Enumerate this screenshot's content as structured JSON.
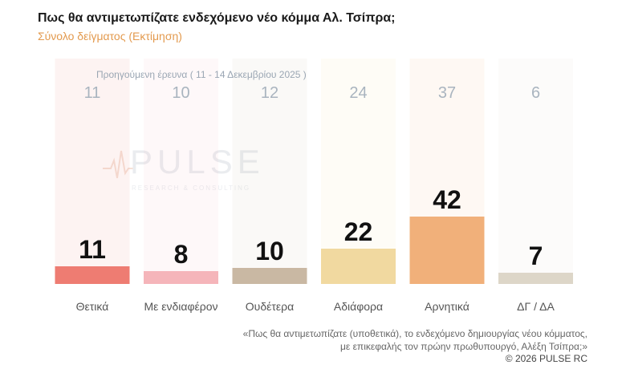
{
  "header": {
    "title": "Πως θα αντιμετωπίζατε ενδεχόμενο νέο κόμμα Αλ. Τσίπρα;",
    "subtitle": "Σύνολο δείγματος  (Εκτίμηση)"
  },
  "watermark": {
    "brand": "PULSE",
    "tagline": "RESEARCH & CONSULTING"
  },
  "footer": {
    "note_line1": "«Πως θα αντιμετωπίζατε (υποθετικά), το ενδεχόμενο δημιουργίας νέου κόμματος,",
    "note_line2": "με επικεφαλής τον πρώην πρωθυπουργό, Αλέξη Τσίπρα;»",
    "copyright": "©  2026  PULSE RC"
  },
  "chart_data": {
    "type": "bar",
    "previous_label": "Προηγούμενη έρευνα ( 11 - 14 Δεκεμβρίου 2025 )",
    "categories": [
      "Θετικά",
      "Με ενδιαφέρον",
      "Ουδέτερα",
      "Αδιάφορα",
      "Αρνητικά",
      "ΔΓ / ΔΑ"
    ],
    "series": [
      {
        "values": [
          11,
          8,
          10,
          22,
          42,
          7
        ]
      }
    ],
    "previous_values": [
      11,
      10,
      12,
      24,
      37,
      6
    ],
    "colors": [
      "#ee7c72",
      "#f5b5ba",
      "#c9b8a3",
      "#f1d9a0",
      "#f1b07a",
      "#ddd6c8"
    ],
    "ylim": [
      0,
      50
    ]
  }
}
